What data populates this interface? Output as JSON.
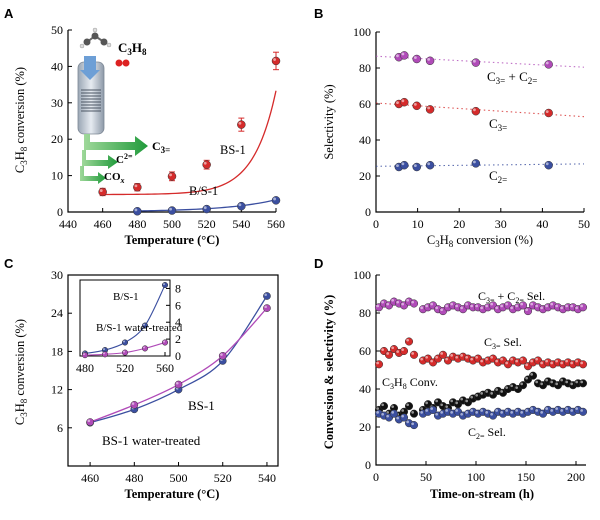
{
  "colors": {
    "red": "#d52b2b",
    "blue": "#3b4fa0",
    "magenta": "#b04bb8",
    "black": "#111111",
    "purple_line": "#9a4ab0"
  },
  "chart_data": [
    {
      "panel": "A",
      "type": "line",
      "xlabel": "Temperature (°C)",
      "ylabel": "C3H8 conversion (%)",
      "xlim": [
        440,
        560
      ],
      "ylim": [
        0,
        50
      ],
      "xticks": [
        440,
        460,
        480,
        500,
        520,
        540,
        560
      ],
      "yticks": [
        0,
        10,
        20,
        30,
        40,
        50
      ],
      "series": [
        {
          "name": "BS-1",
          "x": [
            460,
            480,
            500,
            520,
            540,
            560
          ],
          "y": [
            5.5,
            6.8,
            9.8,
            13.0,
            24.0,
            41.5
          ],
          "yerr": [
            1.0,
            1.0,
            1.2,
            1.2,
            1.8,
            2.4
          ],
          "color": "#d52b2b"
        },
        {
          "name": "B/S-1",
          "x": [
            480,
            500,
            520,
            540,
            560
          ],
          "y": [
            0.2,
            0.4,
            0.8,
            1.6,
            3.2
          ],
          "color": "#3b4fa0"
        }
      ],
      "inset_labels": {
        "reactant": "C3H8",
        "product_c3": "C3=",
        "product_c2": "C2=",
        "cox": "COx"
      }
    },
    {
      "panel": "B",
      "type": "scatter",
      "xlabel": "C3H8 conversion (%)",
      "ylabel": "Selectivity (%)",
      "xlim": [
        0,
        50
      ],
      "ylim": [
        0,
        100
      ],
      "xticks": [
        0,
        10,
        20,
        30,
        40,
        50
      ],
      "yticks": [
        0,
        20,
        40,
        60,
        80,
        100
      ],
      "series": [
        {
          "name": "C3= + C2=",
          "x": [
            5.5,
            6.8,
            9.8,
            13.0,
            24.0,
            41.5
          ],
          "y": [
            86,
            87,
            85,
            84,
            83,
            82
          ],
          "color": "#b04bb8"
        },
        {
          "name": "C3=",
          "x": [
            5.5,
            6.8,
            9.8,
            13.0,
            24.0,
            41.5
          ],
          "y": [
            60,
            61,
            59,
            57,
            56,
            55
          ],
          "color": "#d52b2b"
        },
        {
          "name": "C2=",
          "x": [
            5.5,
            6.8,
            9.8,
            13.0,
            24.0,
            41.5
          ],
          "y": [
            25,
            26,
            25,
            26,
            27,
            26
          ],
          "color": "#3b4fa0"
        }
      ]
    },
    {
      "panel": "C",
      "type": "line",
      "xlabel": "Temperature (°C)",
      "ylabel": "C3H8 conversion (%)",
      "xlim": [
        450,
        545
      ],
      "ylim": [
        0,
        30
      ],
      "xticks": [
        460,
        480,
        500,
        520,
        540
      ],
      "yticks": [
        6,
        12,
        18,
        24,
        30
      ],
      "series": [
        {
          "name": "BS-1",
          "x": [
            460,
            480,
            500,
            520,
            540
          ],
          "y": [
            6.8,
            8.9,
            12.0,
            16.5,
            26.7
          ],
          "color": "#3b4fa0"
        },
        {
          "name": "BS-1 water-treated",
          "x": [
            460,
            480,
            500,
            520,
            540
          ],
          "y": [
            6.9,
            9.6,
            12.8,
            17.3,
            24.8
          ],
          "color": "#b04bb8"
        }
      ],
      "inset": {
        "xlim": [
          475,
          565
        ],
        "ylim": [
          0,
          9
        ],
        "xticks": [
          480,
          520,
          560
        ],
        "yticks": [
          0,
          2,
          4,
          6,
          8
        ],
        "series": [
          {
            "name": "B/S-1",
            "x": [
              480,
              500,
              520,
              540,
              560
            ],
            "y": [
              0.3,
              0.7,
              1.6,
              3.6,
              8.4
            ],
            "color": "#3b4fa0"
          },
          {
            "name": "B/S-1 water-treated",
            "x": [
              480,
              500,
              520,
              540,
              560
            ],
            "y": [
              0.1,
              0.2,
              0.4,
              0.9,
              1.6
            ],
            "color": "#b04bb8"
          }
        ]
      }
    },
    {
      "panel": "D",
      "type": "scatter",
      "xlabel": "Time-on-stream (h)",
      "ylabel": "Conversion & selectivity (%)",
      "xlim": [
        0,
        210
      ],
      "ylim": [
        0,
        100
      ],
      "xticks": [
        0,
        50,
        100,
        150,
        200
      ],
      "yticks": [
        0,
        20,
        40,
        60,
        80,
        100
      ],
      "series": [
        {
          "name": "C3= + C2= Sel.",
          "x": [
            3,
            8,
            13,
            18,
            23,
            28,
            33,
            38,
            47,
            52,
            57,
            62,
            67,
            72,
            77,
            82,
            87,
            92,
            97,
            102,
            107,
            112,
            117,
            122,
            127,
            132,
            137,
            142,
            147,
            152,
            157,
            162,
            167,
            172,
            177,
            182,
            187,
            192,
            197,
            202,
            207
          ],
          "y": [
            83,
            85,
            84,
            86,
            85,
            84,
            86,
            85,
            82,
            83,
            84,
            82,
            81,
            83,
            84,
            83,
            82,
            84,
            83,
            83,
            82,
            83,
            84,
            82,
            83,
            84,
            82,
            83,
            84,
            81,
            84,
            83,
            82,
            83,
            84,
            83,
            82,
            83,
            83,
            82,
            83
          ],
          "color": "#b04bb8"
        },
        {
          "name": "C3= Sel.",
          "x": [
            3,
            8,
            13,
            18,
            23,
            28,
            33,
            38,
            47,
            52,
            57,
            62,
            67,
            72,
            77,
            82,
            87,
            92,
            97,
            102,
            107,
            112,
            117,
            122,
            127,
            132,
            137,
            142,
            147,
            152,
            157,
            162,
            167,
            172,
            177,
            182,
            187,
            192,
            197,
            202,
            207
          ],
          "y": [
            53,
            60,
            58,
            61,
            59,
            60,
            65,
            58,
            55,
            56,
            54,
            56,
            58,
            55,
            57,
            56,
            57,
            56,
            55,
            56,
            54,
            55,
            56,
            54,
            55,
            53,
            55,
            54,
            55,
            52,
            54,
            55,
            53,
            54,
            53,
            54,
            53,
            54,
            53,
            54,
            53
          ],
          "color": "#d52b2b"
        },
        {
          "name": "C3H8 Conv.",
          "x": [
            3,
            8,
            13,
            18,
            23,
            28,
            33,
            38,
            47,
            52,
            57,
            62,
            67,
            72,
            77,
            82,
            87,
            92,
            97,
            102,
            107,
            112,
            117,
            122,
            127,
            132,
            137,
            142,
            147,
            152,
            157,
            162,
            167,
            172,
            177,
            182,
            187,
            192,
            197,
            202,
            207
          ],
          "y": [
            29,
            31,
            27,
            30,
            26,
            28,
            31,
            27,
            29,
            32,
            30,
            33,
            31,
            30,
            33,
            32,
            34,
            33,
            35,
            36,
            37,
            38,
            37,
            39,
            38,
            40,
            41,
            40,
            42,
            45,
            47,
            43,
            42,
            44,
            43,
            42,
            44,
            43,
            42,
            43,
            43
          ],
          "color": "#111111"
        },
        {
          "name": "C2= Sel.",
          "x": [
            3,
            8,
            13,
            18,
            23,
            28,
            33,
            38,
            47,
            52,
            57,
            62,
            67,
            72,
            77,
            82,
            87,
            92,
            97,
            102,
            107,
            112,
            117,
            122,
            127,
            132,
            137,
            142,
            147,
            152,
            157,
            162,
            167,
            172,
            177,
            182,
            187,
            192,
            197,
            202,
            207
          ],
          "y": [
            27,
            26,
            25,
            27,
            24,
            25,
            22,
            21,
            27,
            28,
            29,
            26,
            27,
            28,
            27,
            28,
            26,
            27,
            28,
            27,
            28,
            27,
            26,
            28,
            27,
            28,
            27,
            28,
            27,
            28,
            29,
            28,
            27,
            29,
            28,
            29,
            28,
            29,
            28,
            29,
            28
          ],
          "color": "#3b4fa0"
        }
      ]
    }
  ]
}
